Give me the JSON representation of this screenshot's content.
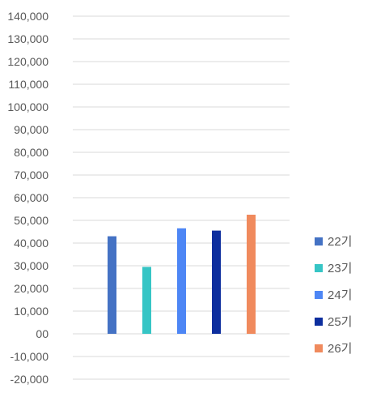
{
  "chart_data": {
    "type": "bar",
    "grouped_single_category": true,
    "ylim": [
      -20000,
      140000
    ],
    "ytick_step": 10000,
    "y_tick_labels": [
      "140,000",
      "130,000",
      "120,000",
      "110,000",
      "100,000",
      "90,000",
      "80,000",
      "70,000",
      "60,000",
      "50,000",
      "40,000",
      "30,000",
      "20,000",
      "10,000",
      "00",
      "-10,000",
      "-20,000"
    ],
    "grid": true,
    "legend_position": "right",
    "series": [
      {
        "name": "22기",
        "value": 43000,
        "color": "#4472C4"
      },
      {
        "name": "23기",
        "value": 29500,
        "color": "#36C5C5"
      },
      {
        "name": "24기",
        "value": 46500,
        "color": "#4D86F5"
      },
      {
        "name": "25기",
        "value": 45500,
        "color": "#0D2E9E"
      },
      {
        "name": "26기",
        "value": 52500,
        "color": "#F08A5D"
      }
    ]
  }
}
